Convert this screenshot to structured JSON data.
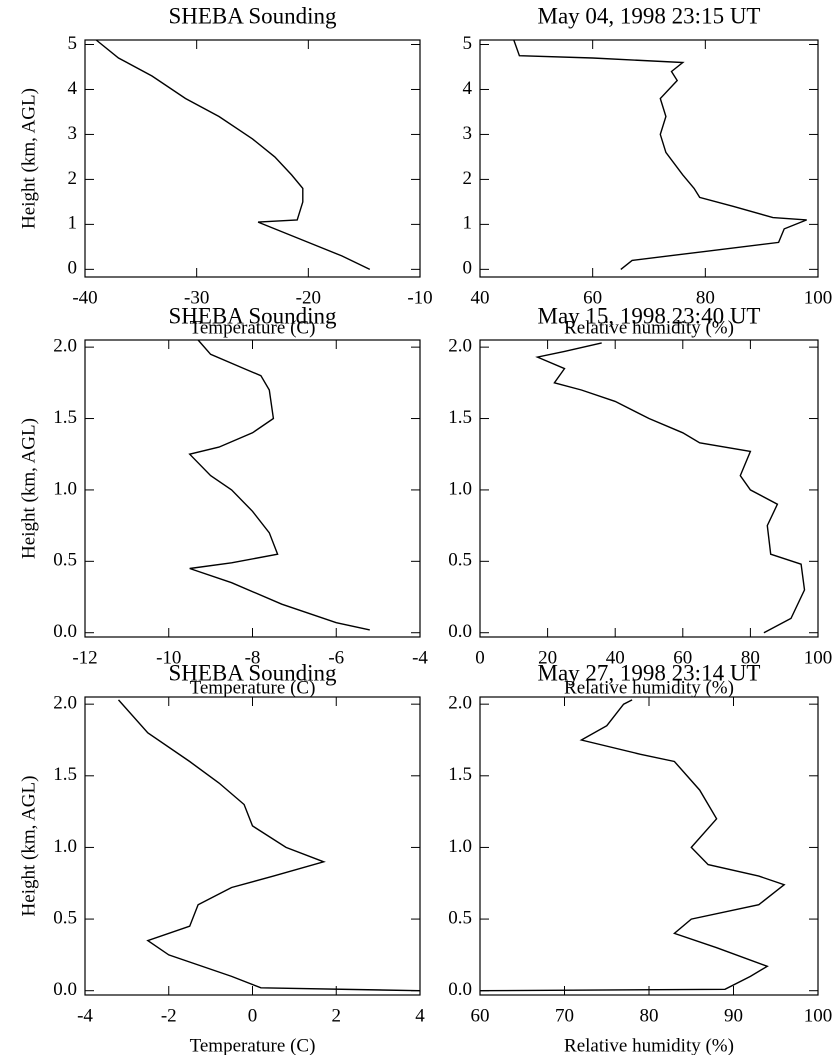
{
  "chart_data": [
    {
      "type": "line",
      "title": "SHEBA Sounding",
      "xlabel": "Temperature (C)",
      "ylabel": "Height (km, AGL)",
      "x": [
        -14.5,
        -17,
        -20,
        -24.5,
        -21,
        -20.5,
        -20.5,
        -21.5,
        -23,
        -25,
        -28,
        -31,
        -34,
        -37,
        -39
      ],
      "values": [
        0,
        0.3,
        0.6,
        1.05,
        1.1,
        1.5,
        1.8,
        2.1,
        2.5,
        2.9,
        3.4,
        3.8,
        4.3,
        4.7,
        5.1
      ],
      "xlim": [
        -40,
        -10
      ],
      "xticks": [
        -40,
        -30,
        -20,
        -10
      ],
      "ylim": [
        -0.17,
        5.1
      ],
      "yticks": [
        0,
        1,
        2,
        3,
        4,
        5
      ],
      "color": "#000000"
    },
    {
      "type": "line",
      "title": "May 04, 1998 23:15 UT",
      "xlabel": "Relative humidity (%)",
      "x": [
        65,
        67,
        80,
        93,
        94,
        98,
        92,
        85,
        79,
        78,
        76,
        73,
        72,
        73,
        72,
        75,
        74,
        76,
        60,
        47,
        46
      ],
      "values": [
        0,
        0.2,
        0.4,
        0.6,
        0.9,
        1.1,
        1.15,
        1.4,
        1.6,
        1.8,
        2.1,
        2.6,
        3.0,
        3.4,
        3.8,
        4.2,
        4.4,
        4.6,
        4.7,
        4.75,
        5.1
      ],
      "xlim": [
        40,
        100
      ],
      "xticks": [
        40,
        60,
        80,
        100
      ],
      "ylim": [
        -0.17,
        5.1
      ],
      "yticks": [
        0,
        1,
        2,
        3,
        4,
        5
      ],
      "color": "#000000"
    },
    {
      "type": "line",
      "title": "SHEBA Sounding",
      "xlabel": "Temperature (C)",
      "ylabel": "Height (km, AGL)",
      "x": [
        -5.2,
        -6,
        -7.3,
        -8.5,
        -9.5,
        -8.5,
        -7.4,
        -7.6,
        -8,
        -8.5,
        -9,
        -9.5,
        -8.8,
        -8,
        -7.5,
        -7.6,
        -7.8,
        -8.2,
        -9,
        -9.3
      ],
      "values": [
        0.02,
        0.07,
        0.2,
        0.35,
        0.45,
        0.49,
        0.55,
        0.7,
        0.85,
        1.0,
        1.1,
        1.25,
        1.3,
        1.4,
        1.5,
        1.7,
        1.8,
        1.85,
        1.95,
        2.05
      ],
      "xlim": [
        -12,
        -4
      ],
      "xticks": [
        -12,
        -10,
        -8,
        -6,
        -4
      ],
      "ylim": [
        -0.03,
        2.05
      ],
      "yticks": [
        {
          "value": 0,
          "label": "0.0"
        },
        {
          "value": 0.5,
          "label": "0.5"
        },
        {
          "value": 1,
          "label": "1.0"
        },
        {
          "value": 1.5,
          "label": "1.5"
        },
        {
          "value": 2,
          "label": "2.0"
        }
      ],
      "color": "#000000"
    },
    {
      "type": "line",
      "title": "May 15, 1998 23:40 UT",
      "xlabel": "Relative humidity (%)",
      "x": [
        84,
        92,
        96,
        95,
        86,
        85,
        88,
        80,
        77,
        80,
        65,
        60,
        50,
        40,
        30,
        22,
        25,
        17,
        25,
        36
      ],
      "values": [
        0,
        0.1,
        0.3,
        0.48,
        0.55,
        0.75,
        0.9,
        1.0,
        1.1,
        1.27,
        1.33,
        1.4,
        1.5,
        1.62,
        1.7,
        1.75,
        1.85,
        1.93,
        1.97,
        2.03
      ],
      "xlim": [
        0,
        100
      ],
      "xticks": [
        0,
        20,
        40,
        60,
        80,
        100
      ],
      "ylim": [
        -0.03,
        2.05
      ],
      "yticks": [
        {
          "value": 0,
          "label": "0.0"
        },
        {
          "value": 0.5,
          "label": "0.5"
        },
        {
          "value": 1,
          "label": "1.0"
        },
        {
          "value": 1.5,
          "label": "1.5"
        },
        {
          "value": 2,
          "label": "2.0"
        }
      ],
      "color": "#000000"
    },
    {
      "type": "line",
      "title": "SHEBA Sounding",
      "xlabel": "Temperature (C)",
      "ylabel": "Height (km, AGL)",
      "x": [
        4,
        0.2,
        -0.5,
        -2,
        -2.5,
        -1.5,
        -1.3,
        -0.5,
        0.5,
        1.7,
        0.8,
        0,
        -0.2,
        -0.8,
        -1.5,
        -2.5,
        -3.2
      ],
      "values": [
        0,
        0.02,
        0.1,
        0.25,
        0.35,
        0.45,
        0.6,
        0.72,
        0.8,
        0.9,
        1.0,
        1.15,
        1.3,
        1.45,
        1.6,
        1.8,
        2.03
      ],
      "xlim": [
        -4,
        4
      ],
      "xticks": [
        -4,
        -2,
        0,
        2,
        4
      ],
      "ylim": [
        -0.03,
        2.05
      ],
      "yticks": [
        {
          "value": 0,
          "label": "0.0"
        },
        {
          "value": 0.5,
          "label": "0.5"
        },
        {
          "value": 1,
          "label": "1.0"
        },
        {
          "value": 1.5,
          "label": "1.5"
        },
        {
          "value": 2,
          "label": "2.0"
        }
      ],
      "color": "#000000"
    },
    {
      "type": "line",
      "title": "May 27, 1998 23:14 UT",
      "xlabel": "Relative humidity (%)",
      "x": [
        60,
        89,
        92,
        94,
        88,
        83,
        85,
        93,
        96,
        93,
        87,
        85,
        88,
        86,
        83,
        79,
        72,
        75,
        77,
        78
      ],
      "values": [
        0,
        0.01,
        0.1,
        0.17,
        0.3,
        0.4,
        0.5,
        0.6,
        0.74,
        0.8,
        0.88,
        1.0,
        1.2,
        1.4,
        1.6,
        1.65,
        1.75,
        1.85,
        2.0,
        2.03
      ],
      "xlim": [
        60,
        100
      ],
      "xticks": [
        60,
        70,
        80,
        90,
        100
      ],
      "ylim": [
        -0.03,
        2.05
      ],
      "yticks": [
        {
          "value": 0,
          "label": "0.0"
        },
        {
          "value": 0.5,
          "label": "0.5"
        },
        {
          "value": 1,
          "label": "1.0"
        },
        {
          "value": 1.5,
          "label": "1.5"
        },
        {
          "value": 2,
          "label": "2.0"
        }
      ],
      "color": "#000000"
    }
  ]
}
